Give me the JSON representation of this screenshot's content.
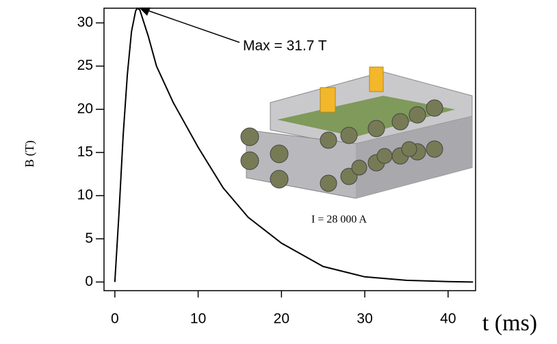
{
  "chart_data": {
    "type": "line",
    "x_label": "t (ms)",
    "y_label": "B (T)",
    "annotations": [
      "Max = 31.7 T",
      "I = 28 000 A"
    ],
    "x": [
      0,
      0.5,
      1,
      1.5,
      2,
      2.5,
      2.7,
      3,
      4,
      5,
      7,
      10,
      13,
      16,
      20,
      25,
      30,
      35,
      40,
      43
    ],
    "series": [
      {
        "color": "#000000",
        "values": [
          0,
          8,
          17,
          24,
          29,
          31.4,
          31.7,
          31.5,
          28.5,
          25,
          20.8,
          15.6,
          10.9,
          7.5,
          4.5,
          1.8,
          0.6,
          0.2,
          0.05,
          0
        ]
      }
    ],
    "xlim": [
      -1.3,
      43.3
    ],
    "ylim": [
      -1,
      31.7
    ],
    "xticks": [
      0,
      10,
      20,
      30,
      40
    ],
    "yticks": [
      0,
      5,
      10,
      15,
      20,
      25,
      30
    ]
  }
}
